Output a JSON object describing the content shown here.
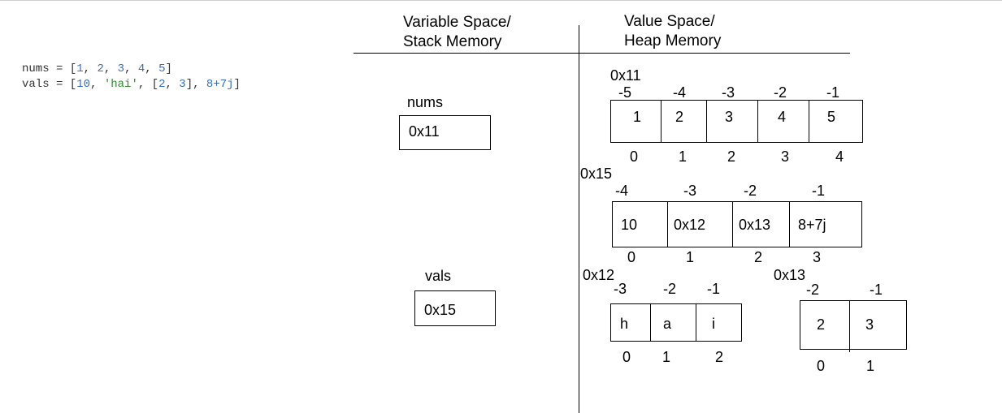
{
  "code": {
    "line1": {
      "prefix": "nums = [",
      "n1": "1",
      "c1": ", ",
      "n2": "2",
      "c2": ", ",
      "n3": "3",
      "c3": ", ",
      "n4": "4",
      "c4": ", ",
      "n5": "5",
      "suffix": "]"
    },
    "line2": {
      "prefix": "vals = [",
      "n1": "10",
      "c1": ", ",
      "s1": "'hai'",
      "c2": ", [",
      "n2": "2",
      "c3": ", ",
      "n3": "3",
      "c4": "], ",
      "n4": "8+7j",
      "suffix": "]"
    }
  },
  "headers": {
    "variable_space": "Variable Space/",
    "stack_memory": "Stack Memory",
    "value_space": "Value Space/",
    "heap_memory": "Heap Memory"
  },
  "variables": [
    {
      "name": "nums",
      "ref": "0x11"
    },
    {
      "name": "vals",
      "ref": "0x15"
    }
  ],
  "heap": {
    "nums_list": {
      "address": "0x11",
      "neg_indices": [
        "-5",
        "-4",
        "-3",
        "-2",
        "-1"
      ],
      "values": [
        "1",
        "2",
        "3",
        "4",
        "5"
      ],
      "pos_indices": [
        "0",
        "1",
        "2",
        "3",
        "4"
      ]
    },
    "vals_list": {
      "address": "0x15",
      "neg_indices": [
        "-4",
        "-3",
        "-2",
        "-1"
      ],
      "values": [
        "10",
        "0x12",
        "0x13",
        "8+7j"
      ],
      "pos_indices": [
        "0",
        "1",
        "2",
        "3"
      ]
    },
    "hai_string": {
      "address": "0x12",
      "neg_indices": [
        "-3",
        "-2",
        "-1"
      ],
      "values": [
        "h",
        "a",
        "i"
      ],
      "pos_indices": [
        "0",
        "1",
        "2"
      ]
    },
    "inner_list": {
      "address": "0x13",
      "neg_indices": [
        "-2",
        "-1"
      ],
      "values": [
        "2",
        "3"
      ],
      "pos_indices": [
        "0",
        "1"
      ]
    }
  }
}
